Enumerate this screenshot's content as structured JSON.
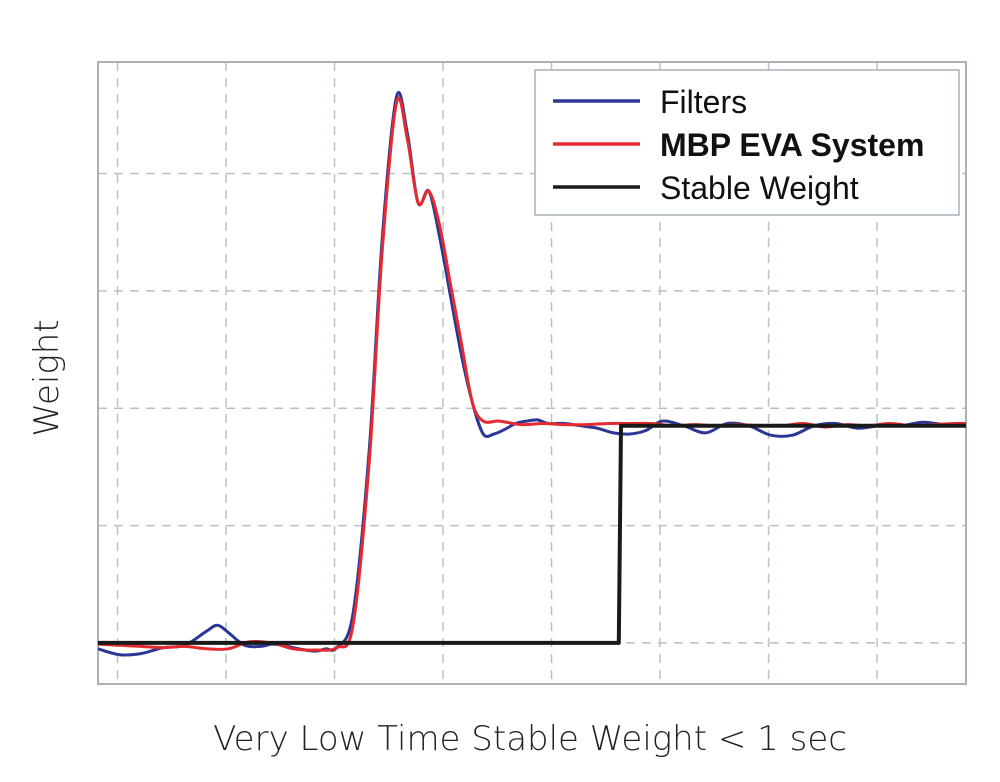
{
  "chart_data": {
    "type": "line",
    "title": "",
    "xlabel": "Very Low Time Stable Weight < 1 sec",
    "ylabel": "Weight",
    "xlim": [
      0,
      8
    ],
    "ylim": [
      0,
      5.3
    ],
    "grid": true,
    "legend_position": "top-right",
    "colors": {
      "frame": "#a9b1bb",
      "grid": "#b8c0ca"
    },
    "series": [
      {
        "name": "Filters",
        "color": "#2a3797",
        "label_color": "#111111",
        "x": [
          0,
          0.2,
          0.4,
          0.6,
          0.8,
          1.0,
          1.1,
          1.2,
          1.35,
          1.5,
          1.6,
          1.7,
          1.85,
          2.0,
          2.1,
          2.2,
          2.35,
          2.5,
          2.62,
          2.75,
          2.85,
          2.95,
          3.05,
          3.15,
          3.25,
          3.35,
          3.45,
          3.55,
          3.65,
          3.75,
          3.85,
          3.95,
          4.05,
          4.15,
          4.3,
          4.45,
          4.6,
          4.75,
          4.9,
          5.05,
          5.2,
          5.4,
          5.6,
          5.8,
          6.0,
          6.2,
          6.4,
          6.6,
          6.8,
          7.0,
          7.2,
          7.4,
          7.6,
          7.8,
          8.0
        ],
        "y": [
          0.3,
          0.25,
          0.26,
          0.31,
          0.33,
          0.45,
          0.5,
          0.44,
          0.33,
          0.32,
          0.34,
          0.33,
          0.3,
          0.28,
          0.3,
          0.31,
          0.6,
          2.0,
          3.8,
          5.0,
          4.7,
          4.1,
          4.2,
          3.8,
          3.3,
          2.8,
          2.4,
          2.13,
          2.13,
          2.17,
          2.22,
          2.24,
          2.25,
          2.22,
          2.22,
          2.2,
          2.18,
          2.14,
          2.13,
          2.16,
          2.24,
          2.2,
          2.14,
          2.22,
          2.2,
          2.12,
          2.12,
          2.2,
          2.22,
          2.18,
          2.2,
          2.2,
          2.23,
          2.21,
          2.2
        ]
      },
      {
        "name": "MBP EVA System",
        "color": "#e52b2f",
        "label_color": "#e52b2f",
        "x": [
          0,
          0.2,
          0.4,
          0.6,
          0.8,
          1.0,
          1.2,
          1.4,
          1.6,
          1.8,
          2.0,
          2.2,
          2.35,
          2.5,
          2.62,
          2.75,
          2.85,
          2.95,
          3.05,
          3.15,
          3.25,
          3.35,
          3.45,
          3.55,
          3.7,
          3.9,
          4.1,
          4.3,
          4.5,
          4.7,
          4.9,
          5.1,
          5.3,
          5.5,
          5.7,
          5.9,
          6.1,
          6.3,
          6.5,
          6.7,
          6.9,
          7.1,
          7.3,
          7.5,
          7.7,
          7.9,
          8.0
        ],
        "y": [
          0.34,
          0.33,
          0.32,
          0.31,
          0.32,
          0.3,
          0.3,
          0.36,
          0.35,
          0.3,
          0.29,
          0.31,
          0.5,
          1.9,
          3.7,
          4.95,
          4.65,
          4.1,
          4.2,
          3.9,
          3.4,
          2.9,
          2.4,
          2.24,
          2.24,
          2.21,
          2.22,
          2.21,
          2.21,
          2.22,
          2.22,
          2.22,
          2.2,
          2.21,
          2.2,
          2.21,
          2.2,
          2.2,
          2.22,
          2.19,
          2.21,
          2.2,
          2.22,
          2.2,
          2.21,
          2.22,
          2.22
        ]
      },
      {
        "name": "Stable Weight",
        "color": "#1a1a1a",
        "label_color": "#111111",
        "x": [
          0,
          4.8,
          4.82,
          8.0
        ],
        "y": [
          0.35,
          0.35,
          2.2,
          2.2
        ]
      }
    ]
  }
}
